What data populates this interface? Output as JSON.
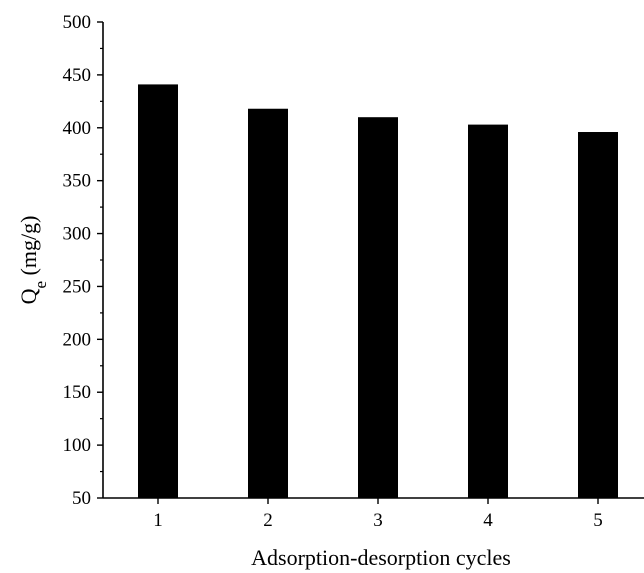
{
  "chart_data": {
    "type": "bar",
    "title": "",
    "xlabel": "Adsorption-desorption cycles",
    "ylabel": {
      "main": "Q",
      "subscript": "e",
      "unit": " (mg/g)"
    },
    "categories": [
      "1",
      "2",
      "3",
      "4",
      "5"
    ],
    "values": [
      441,
      418,
      410,
      403,
      396
    ],
    "ylim": [
      50,
      500
    ],
    "yticks": [
      50,
      100,
      150,
      200,
      250,
      300,
      350,
      400,
      450,
      500
    ],
    "y_minor_step": 25,
    "grid": false,
    "legend": "none",
    "bar_color": "#000000",
    "axis_color": "#000000"
  }
}
